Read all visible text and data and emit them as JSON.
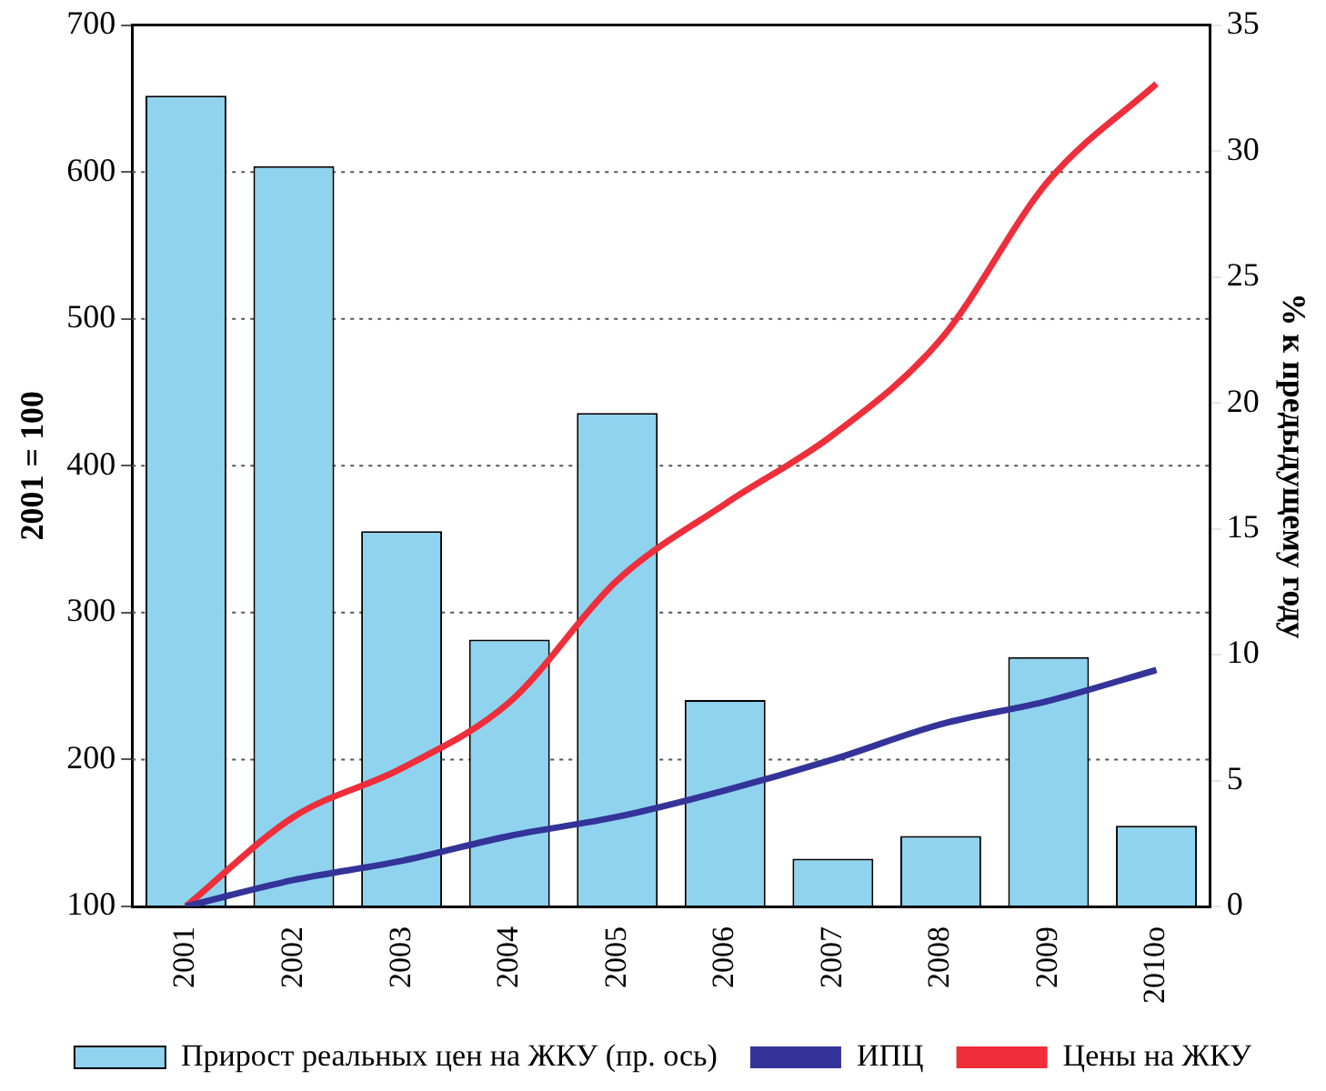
{
  "chart_data": {
    "type": "bar",
    "categories": [
      "2001",
      "2002",
      "2003",
      "2004",
      "2005",
      "2006",
      "2007",
      "2008",
      "2009",
      "2010о"
    ],
    "ylabel": "2001 = 100",
    "y2label": "% к предыдущему году",
    "ylim": [
      100,
      700
    ],
    "yticks": [
      100,
      200,
      300,
      400,
      500,
      600,
      700
    ],
    "y2lim": [
      0,
      35
    ],
    "y2ticks": [
      0,
      5,
      10,
      15,
      20,
      25,
      30,
      35
    ],
    "grid": "y",
    "legend": "bottom",
    "marker": "none",
    "series": [
      {
        "name": "Прирост реальных цен на ЖКУ (пр. ось)",
        "axis": "y2",
        "color": "#8fd3ee",
        "values": [
          32.2,
          29.4,
          14.9,
          10.6,
          19.6,
          8.2,
          1.9,
          2.8,
          9.9,
          3.2
        ]
      },
      {
        "name": "ИПЦ",
        "type": "line",
        "color": "#333399",
        "values": [
          100,
          118,
          131,
          148,
          161,
          179,
          200,
          224,
          240,
          261
        ]
      },
      {
        "name": "Цены на ЖКУ",
        "type": "line",
        "color": "#ee2e3a",
        "values": [
          100,
          161,
          194,
          239,
          322,
          374,
          421,
          486,
          594,
          660
        ]
      }
    ]
  }
}
